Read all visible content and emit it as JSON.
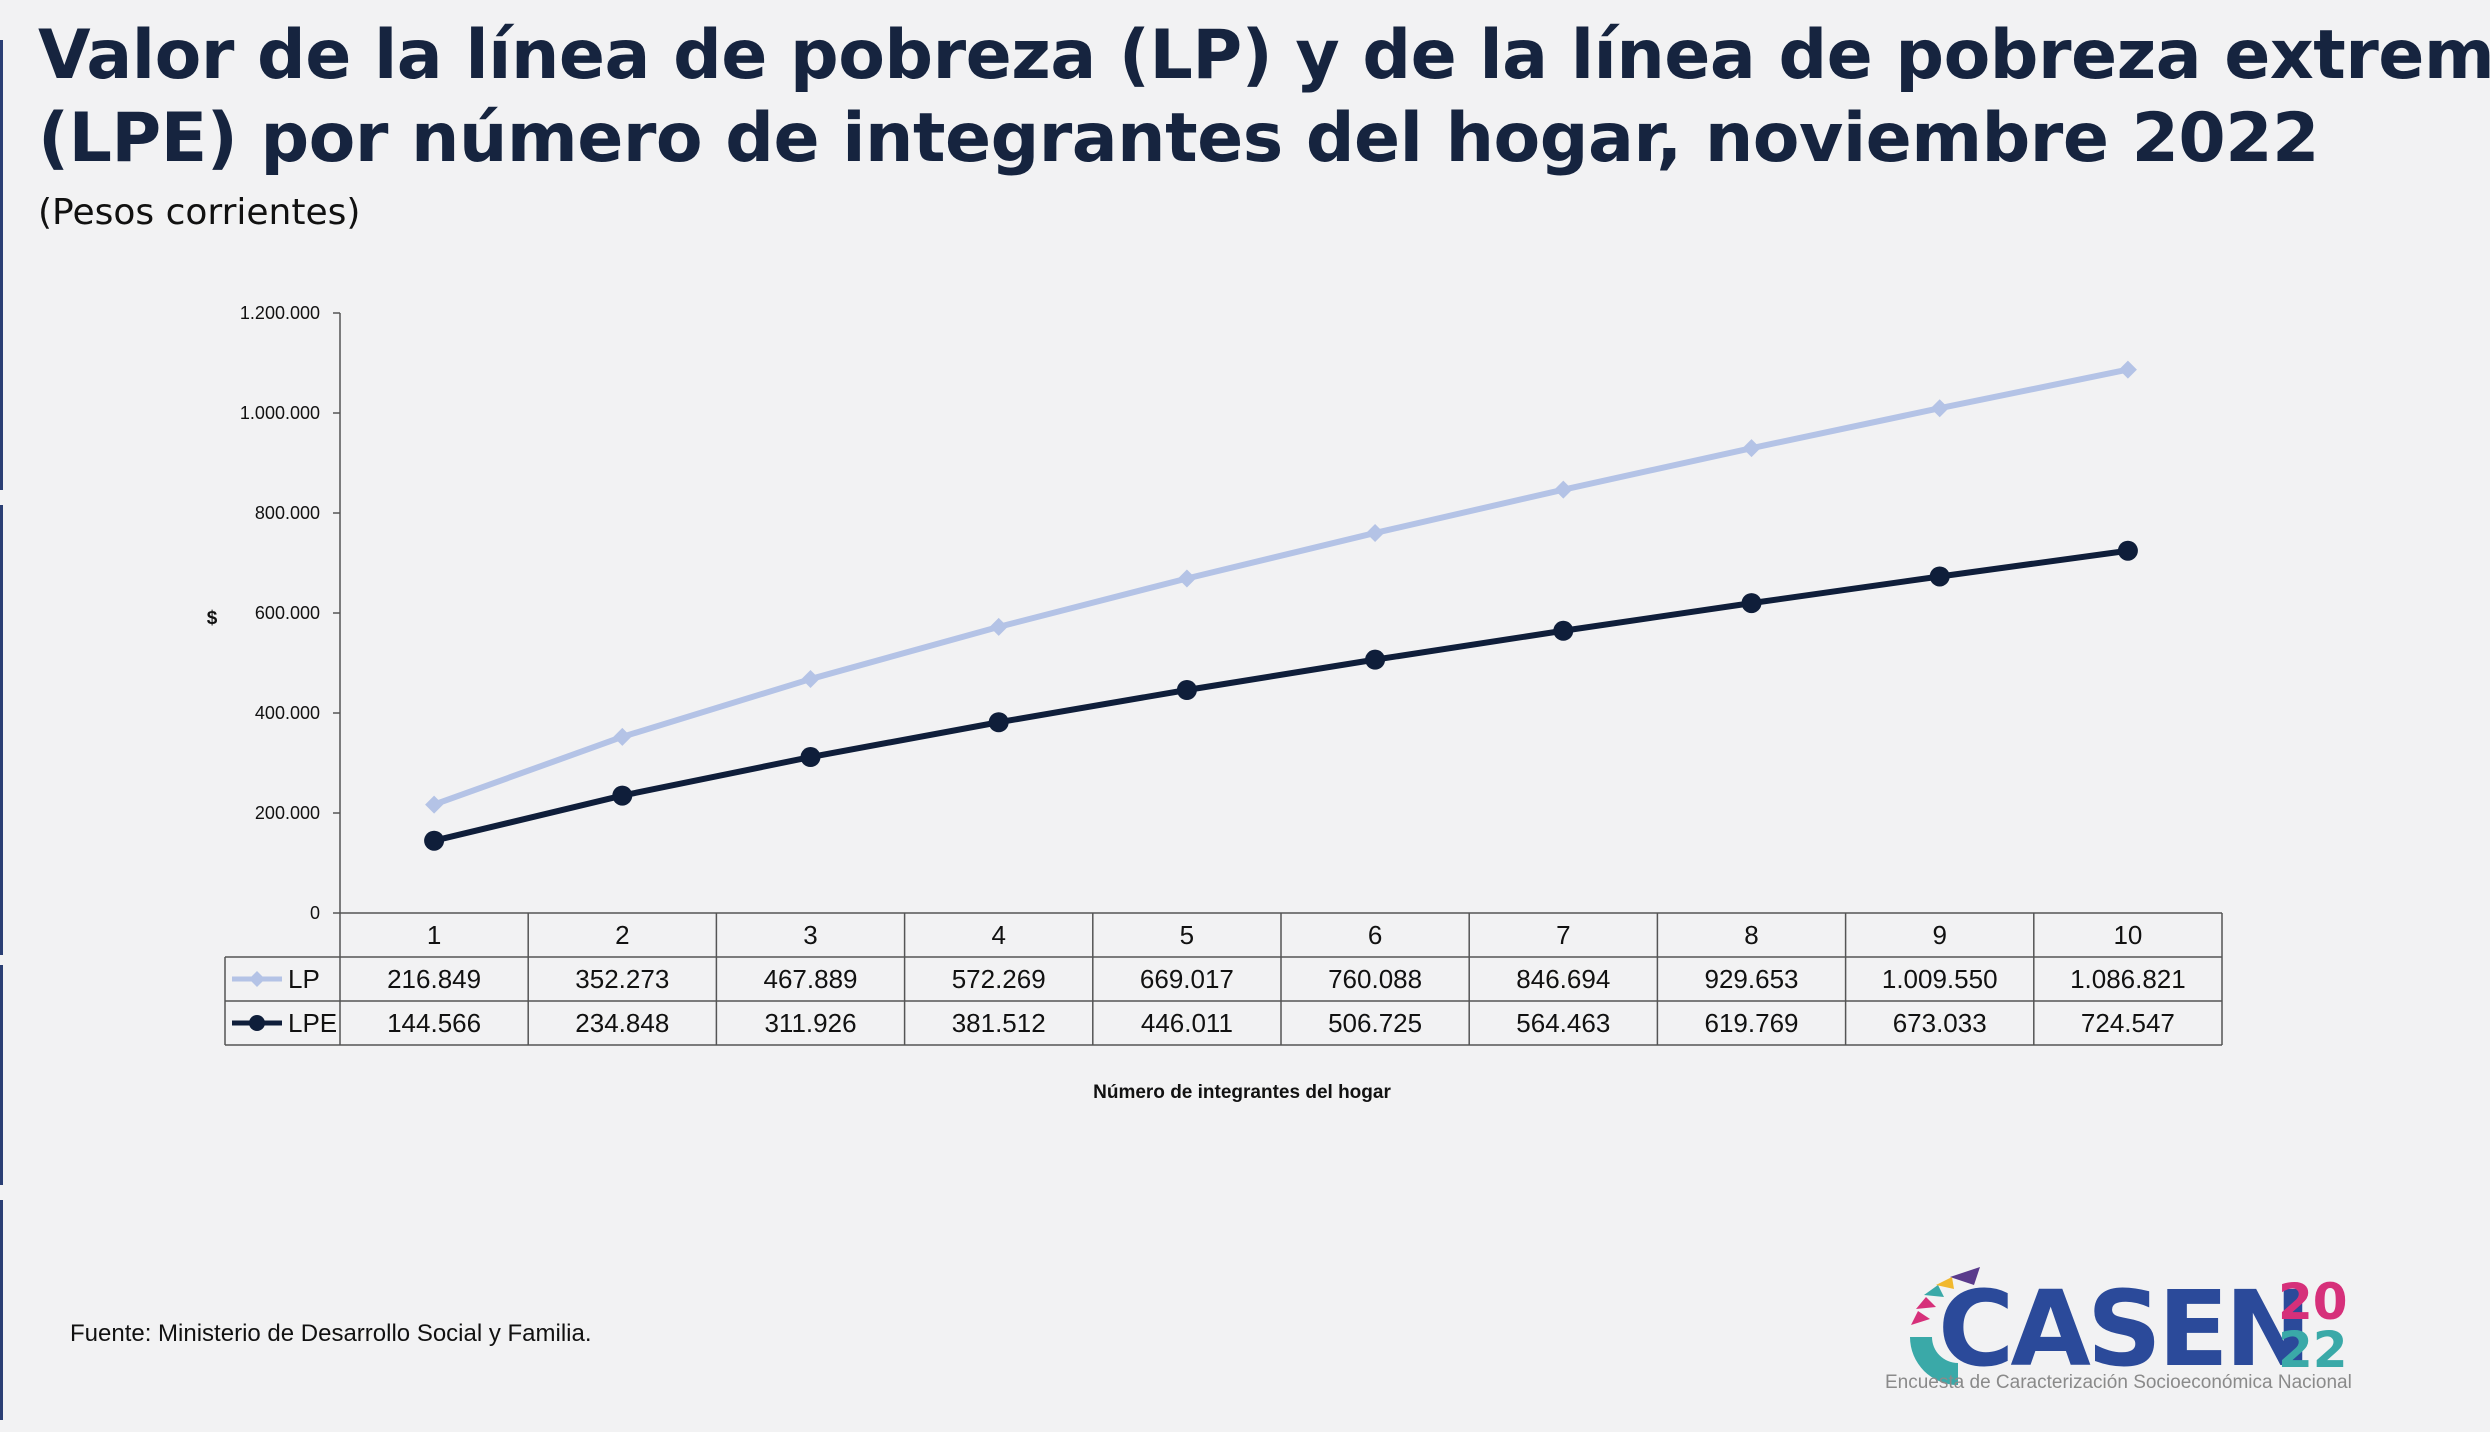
{
  "title_line1": "Valor de la línea de pobreza (LP) y de la línea de pobreza extrema",
  "title_line2": "(LPE) por número de integrantes del hogar, noviembre 2022",
  "subtitle": "(Pesos corrientes)",
  "source": "Fuente: Ministerio de Desarrollo Social y Familia.",
  "logo": {
    "letters": "CASEN",
    "year_top": "20",
    "year_bottom": "22",
    "caption": "Encuesta de Caracterización Socioeconómica Nacional",
    "colors": {
      "primary": "#2b4a9a",
      "pink": "#d6307a",
      "teal": "#3aa9a8",
      "yellow": "#f1b82d",
      "purple": "#5a3b8c"
    }
  },
  "chart_data": {
    "type": "line",
    "categories": [
      "1",
      "2",
      "3",
      "4",
      "5",
      "6",
      "7",
      "8",
      "9",
      "10"
    ],
    "series": [
      {
        "name": "LP",
        "values": [
          216849,
          352273,
          467889,
          572269,
          669017,
          760088,
          846694,
          929653,
          1009550,
          1086821
        ],
        "labels": [
          "216.849",
          "352.273",
          "467.889",
          "572.269",
          "669.017",
          "760.088",
          "846.694",
          "929.653",
          "1.009.550",
          "1.086.821"
        ],
        "color": "#b4c3e6",
        "marker": "diamond"
      },
      {
        "name": "LPE",
        "values": [
          144566,
          234848,
          311926,
          381512,
          446011,
          506725,
          564463,
          619769,
          673033,
          724547
        ],
        "labels": [
          "144.566",
          "234.848",
          "311.926",
          "381.512",
          "446.011",
          "506.725",
          "564.463",
          "619.769",
          "673.033",
          "724.547"
        ],
        "color": "#0f1e3a",
        "marker": "circle"
      }
    ],
    "ylim": [
      0,
      1200000
    ],
    "yticks": [
      0,
      200000,
      400000,
      600000,
      800000,
      1000000,
      1200000
    ],
    "ytick_labels": [
      "0",
      "200.000",
      "400.000",
      "600.000",
      "800.000",
      "1.000.000",
      "1.200.000"
    ],
    "ylabel": "$",
    "xlabel": "Número de integrantes del hogar",
    "grid": false,
    "legend": "data-table"
  }
}
